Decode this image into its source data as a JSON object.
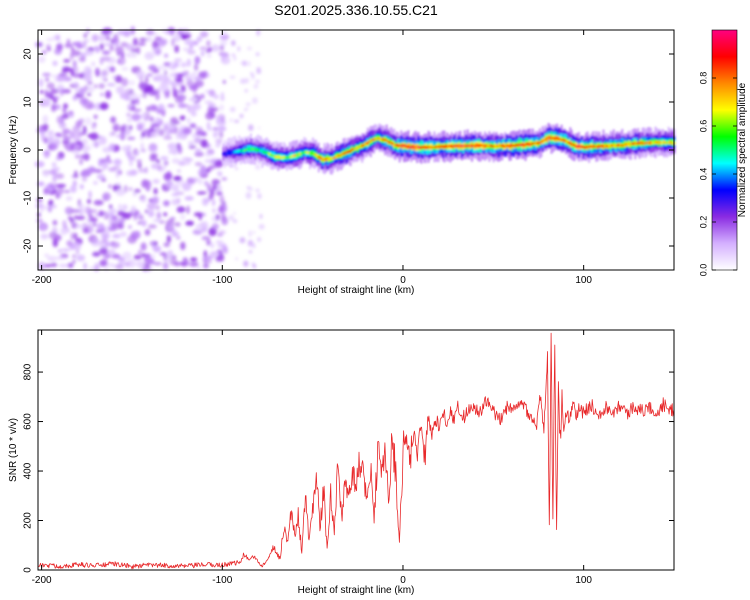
{
  "title": "S201.2025.336.10.55.C21",
  "chart_data": [
    {
      "type": "heatmap",
      "title": "S201.2025.336.10.55.C21",
      "xlabel": "Height of straight line (km)",
      "ylabel": "Frequency (Hz)",
      "xlim": [
        -202,
        150
      ],
      "ylim": [
        -25,
        25
      ],
      "xticks": [
        -200,
        -100,
        0,
        100
      ],
      "yticks": [
        -20,
        -10,
        0,
        10,
        20
      ],
      "colorbar": {
        "label": "Normalized spectral amplitude",
        "range": [
          0.0,
          1.0
        ],
        "ticks": [
          "0.0",
          "0.2",
          "0.4",
          "0.6",
          "0.8"
        ],
        "tick_values": [
          0.0,
          0.2,
          0.4,
          0.6,
          0.8
        ],
        "colors": [
          "#ffffff",
          "#d4b0ff",
          "#8a2be2",
          "#0000ff",
          "#00ffff",
          "#00ff00",
          "#ffff00",
          "#ff8800",
          "#ff0000",
          "#ff0080"
        ]
      },
      "noise_region_km": [
        -202,
        -98
      ],
      "ridge": {
        "x": [
          -100,
          -95,
          -90,
          -85,
          -80,
          -75,
          -70,
          -65,
          -60,
          -55,
          -50,
          -45,
          -40,
          -35,
          -30,
          -25,
          -20,
          -15,
          -10,
          -5,
          0,
          10,
          20,
          30,
          40,
          50,
          60,
          70,
          75,
          80,
          85,
          90,
          95,
          100,
          110,
          120,
          130,
          140,
          150
        ],
        "freq": [
          -0.8,
          -0.5,
          -0.2,
          0.2,
          0.0,
          -0.8,
          -1.5,
          -1.6,
          -1.2,
          -0.5,
          -0.8,
          -2.0,
          -1.8,
          -1.0,
          -0.2,
          0.5,
          1.5,
          2.5,
          2.0,
          1.0,
          0.8,
          0.5,
          0.7,
          0.8,
          0.9,
          0.8,
          0.9,
          1.2,
          1.5,
          2.6,
          2.4,
          1.8,
          0.8,
          0.6,
          0.8,
          1.0,
          1.4,
          1.6,
          1.5
        ],
        "amplitude": [
          0.3,
          0.4,
          0.5,
          0.6,
          0.5,
          0.6,
          0.7,
          0.6,
          0.7,
          0.6,
          0.7,
          0.8,
          0.7,
          0.8,
          0.8,
          0.7,
          0.8,
          0.7,
          0.8,
          0.8,
          0.9,
          0.9,
          0.8,
          0.9,
          0.9,
          0.8,
          0.9,
          0.9,
          0.8,
          0.9,
          0.9,
          0.8,
          0.9,
          0.9,
          0.8,
          0.8,
          0.8,
          0.7,
          0.7
        ]
      }
    },
    {
      "type": "line",
      "title": "",
      "xlabel": "Height of straight line (km)",
      "ylabel": "SNR (10 * v/v)",
      "xlim": [
        -202,
        150
      ],
      "ylim": [
        0,
        970
      ],
      "xticks": [
        -200,
        -100,
        0,
        100
      ],
      "yticks": [
        0,
        200,
        400,
        600,
        800
      ],
      "series": [
        {
          "name": "SNR",
          "color": "#e8282a",
          "x": [
            -202,
            -190,
            -180,
            -170,
            -160,
            -150,
            -140,
            -130,
            -120,
            -110,
            -100,
            -95,
            -90,
            -88,
            -85,
            -82,
            -80,
            -78,
            -75,
            -72,
            -70,
            -68,
            -66,
            -64,
            -62,
            -60,
            -58,
            -56,
            -54,
            -52,
            -50,
            -48,
            -46,
            -44,
            -42,
            -40,
            -38,
            -36,
            -34,
            -32,
            -30,
            -28,
            -26,
            -24,
            -22,
            -20,
            -18,
            -16,
            -14,
            -12,
            -10,
            -8,
            -6,
            -4,
            -2,
            0,
            2,
            4,
            6,
            8,
            10,
            12,
            14,
            16,
            18,
            20,
            22,
            24,
            26,
            28,
            30,
            34,
            38,
            42,
            46,
            50,
            54,
            58,
            62,
            66,
            70,
            74,
            76,
            78,
            80,
            81,
            82,
            83,
            84,
            85,
            86,
            87,
            88,
            89,
            90,
            92,
            94,
            96,
            98,
            100,
            104,
            108,
            112,
            116,
            120,
            124,
            128,
            132,
            136,
            140,
            144,
            148,
            150
          ],
          "values": [
            20,
            15,
            22,
            18,
            25,
            14,
            20,
            18,
            15,
            22,
            20,
            28,
            30,
            65,
            40,
            55,
            30,
            20,
            45,
            95,
            70,
            45,
            180,
            110,
            230,
            140,
            220,
            75,
            310,
            110,
            250,
            420,
            160,
            330,
            80,
            300,
            130,
            495,
            210,
            380,
            270,
            420,
            300,
            460,
            380,
            260,
            430,
            180,
            490,
            350,
            500,
            310,
            530,
            390,
            110,
            480,
            540,
            420,
            560,
            480,
            600,
            470,
            620,
            540,
            610,
            580,
            650,
            600,
            640,
            610,
            660,
            620,
            670,
            630,
            680,
            640,
            600,
            670,
            640,
            680,
            630,
            590,
            700,
            560,
            860,
            180,
            970,
            250,
            900,
            170,
            760,
            480,
            720,
            560,
            650,
            600,
            680,
            620,
            660,
            630,
            670,
            630,
            660,
            640,
            670,
            630,
            665,
            640,
            660,
            630,
            670,
            640,
            650
          ]
        }
      ]
    }
  ]
}
